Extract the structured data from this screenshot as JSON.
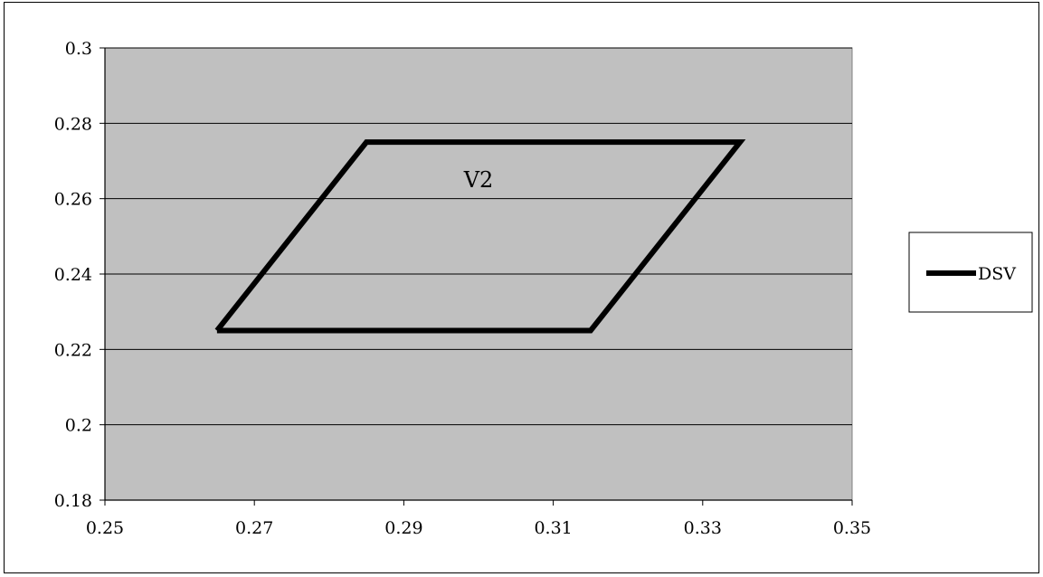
{
  "chart_data": {
    "type": "scatter",
    "title": "",
    "xlabel": "",
    "ylabel": "",
    "xlim": [
      0.25,
      0.35
    ],
    "ylim": [
      0.18,
      0.3
    ],
    "x_ticks": [
      "0.25",
      "0.27",
      "0.29",
      "0.31",
      "0.33",
      "0.35"
    ],
    "y_ticks": [
      "0.18",
      "0.2",
      "0.22",
      "0.24",
      "0.26",
      "0.28",
      "0.3"
    ],
    "grid": "horizontal",
    "plot_background": "#c0c0c0",
    "legend_position": "right",
    "series": [
      {
        "name": "DSV",
        "color": "#000000",
        "style": "line",
        "points": [
          {
            "x": 0.265,
            "y": 0.225
          },
          {
            "x": 0.285,
            "y": 0.275
          },
          {
            "x": 0.335,
            "y": 0.275
          },
          {
            "x": 0.315,
            "y": 0.225
          },
          {
            "x": 0.265,
            "y": 0.225
          }
        ]
      }
    ],
    "annotations": [
      {
        "text": "V2",
        "x": 0.3,
        "y": 0.263
      }
    ]
  }
}
